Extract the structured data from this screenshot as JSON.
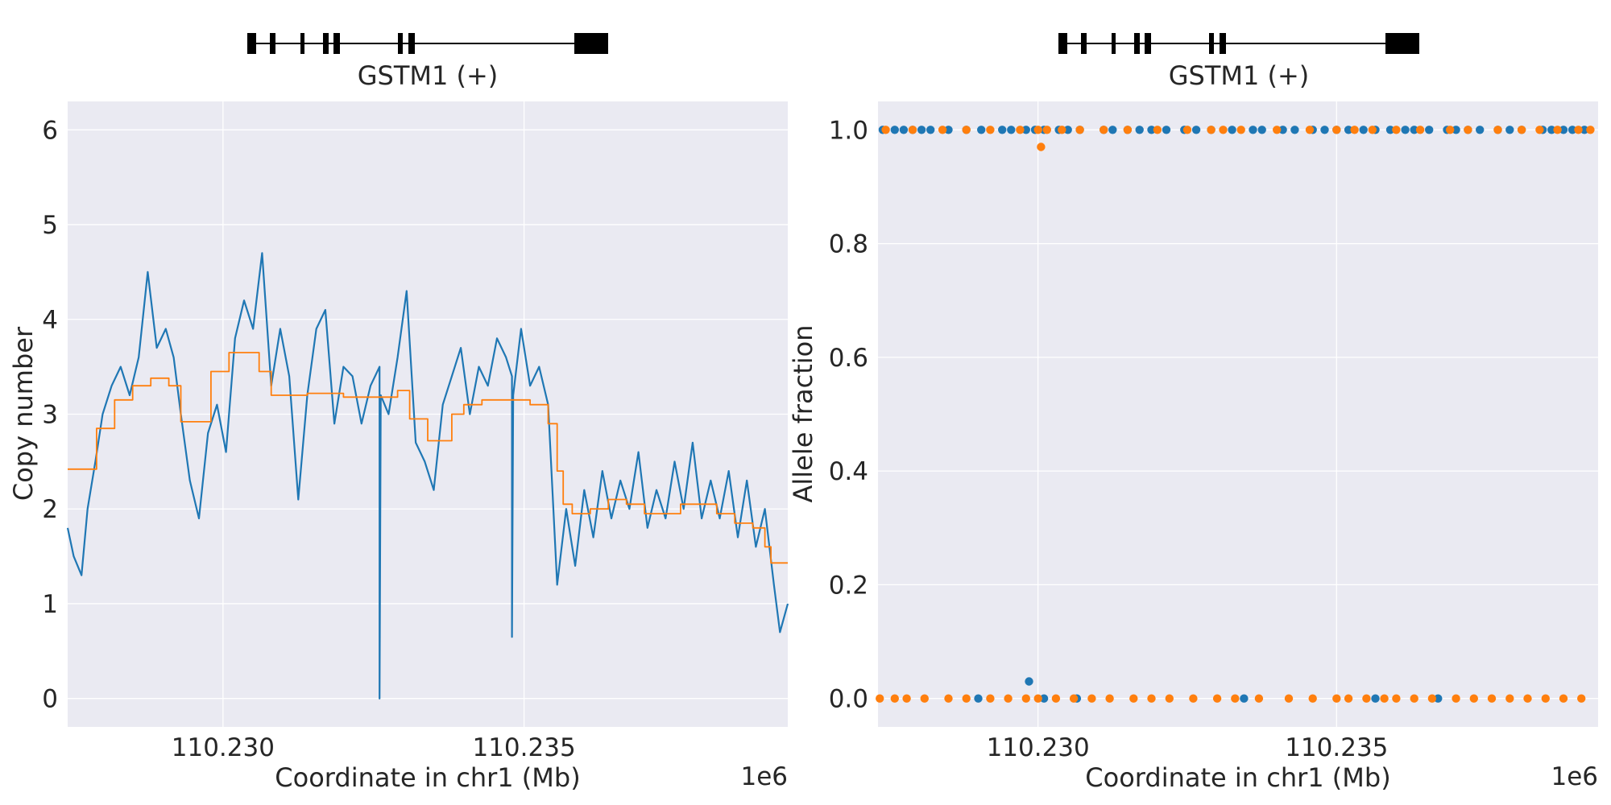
{
  "chart_data": [
    {
      "type": "line",
      "gene_track": {
        "label": "GSTM1 (+)"
      },
      "xlabel": "Coordinate in chr1 (Mb)",
      "ylabel": "Copy number",
      "x_offset_label": "1e6",
      "x_tick_labels": [
        "110.230",
        "110.235"
      ],
      "x_ticks": [
        110.23,
        110.235
      ],
      "y_tick_labels": [
        "0",
        "1",
        "2",
        "3",
        "4",
        "5",
        "6"
      ],
      "y_ticks": [
        0,
        1,
        2,
        3,
        4,
        5,
        6
      ],
      "xlim": [
        110.22742,
        110.23938
      ],
      "ylim": [
        -0.3,
        6.3
      ],
      "grid": true,
      "series": [
        {
          "color": "#1f77b4",
          "x": [
            110.22742,
            110.22752,
            110.22765,
            110.22775,
            110.22788,
            110.228,
            110.22815,
            110.2283,
            110.22845,
            110.2286,
            110.22875,
            110.2289,
            110.22905,
            110.22918,
            110.2293,
            110.22945,
            110.2296,
            110.22975,
            110.2299,
            110.23005,
            110.2302,
            110.23035,
            110.2305,
            110.23065,
            110.2308,
            110.23095,
            110.2311,
            110.23125,
            110.2314,
            110.23155,
            110.2317,
            110.23185,
            110.232,
            110.23215,
            110.2323,
            110.23245,
            110.2326,
            110.2326,
            110.23262,
            110.23275,
            110.2329,
            110.23305,
            110.2332,
            110.23335,
            110.2335,
            110.23365,
            110.2338,
            110.23395,
            110.2341,
            110.23425,
            110.2344,
            110.23455,
            110.2347,
            110.2348,
            110.2348,
            110.23482,
            110.23495,
            110.2351,
            110.23525,
            110.2354,
            110.23555,
            110.2357,
            110.23585,
            110.236,
            110.23615,
            110.2363,
            110.23645,
            110.2366,
            110.23675,
            110.2369,
            110.23705,
            110.2372,
            110.23735,
            110.2375,
            110.23765,
            110.2378,
            110.23795,
            110.2381,
            110.23825,
            110.2384,
            110.23855,
            110.2387,
            110.23885,
            110.239,
            110.23915,
            110.23925,
            110.23938
          ],
          "y": [
            1.8,
            1.5,
            1.3,
            2.0,
            2.5,
            3.0,
            3.3,
            3.5,
            3.2,
            3.6,
            4.5,
            3.7,
            3.9,
            3.6,
            3.0,
            2.3,
            1.9,
            2.8,
            3.1,
            2.6,
            3.8,
            4.2,
            3.9,
            4.7,
            3.3,
            3.9,
            3.4,
            2.1,
            3.2,
            3.9,
            4.1,
            2.9,
            3.5,
            3.4,
            2.9,
            3.3,
            3.5,
            0.0,
            3.2,
            3.0,
            3.6,
            4.3,
            2.7,
            2.5,
            2.2,
            3.1,
            3.4,
            3.7,
            3.0,
            3.5,
            3.3,
            3.8,
            3.6,
            3.4,
            0.65,
            3.2,
            3.9,
            3.3,
            3.5,
            3.1,
            1.2,
            2.0,
            1.4,
            2.2,
            1.7,
            2.4,
            1.9,
            2.3,
            2.0,
            2.6,
            1.8,
            2.2,
            1.9,
            2.5,
            2.0,
            2.7,
            1.9,
            2.3,
            1.9,
            2.4,
            1.7,
            2.3,
            1.6,
            2.0,
            1.2,
            0.7,
            1.0
          ]
        },
        {
          "color": "#ff7f0e",
          "x": [
            110.22742,
            110.2276,
            110.2279,
            110.2282,
            110.2285,
            110.2288,
            110.2291,
            110.2293,
            110.2296,
            110.2298,
            110.2301,
            110.2304,
            110.2306,
            110.2308,
            110.2311,
            110.2314,
            110.2317,
            110.232,
            110.2323,
            110.2326,
            110.2329,
            110.2331,
            110.2334,
            110.2336,
            110.2338,
            110.234,
            110.2343,
            110.2346,
            110.2349,
            110.2351,
            110.2354,
            110.23555,
            110.23565,
            110.2358,
            110.2361,
            110.2364,
            110.2367,
            110.237,
            110.2373,
            110.2376,
            110.2379,
            110.2382,
            110.2385,
            110.2388,
            110.239,
            110.2391,
            110.23938
          ],
          "y": [
            2.42,
            2.42,
            2.85,
            3.15,
            3.3,
            3.38,
            3.3,
            2.92,
            2.92,
            3.45,
            3.65,
            3.65,
            3.45,
            3.2,
            3.2,
            3.22,
            3.22,
            3.18,
            3.18,
            3.18,
            3.25,
            2.95,
            2.72,
            2.72,
            3.0,
            3.1,
            3.15,
            3.15,
            3.15,
            3.1,
            2.9,
            2.4,
            2.05,
            1.95,
            2.0,
            2.1,
            2.05,
            1.95,
            1.95,
            2.05,
            2.05,
            1.95,
            1.85,
            1.8,
            1.6,
            1.43,
            1.43
          ]
        }
      ]
    },
    {
      "type": "scatter",
      "gene_track": {
        "label": "GSTM1 (+)"
      },
      "xlabel": "Coordinate in chr1 (Mb)",
      "ylabel": "Allele fraction",
      "x_offset_label": "1e6",
      "x_tick_labels": [
        "110.230",
        "110.235"
      ],
      "x_ticks": [
        110.23,
        110.235
      ],
      "y_tick_labels": [
        "0.0",
        "0.2",
        "0.4",
        "0.6",
        "0.8",
        "1.0"
      ],
      "y_ticks": [
        0.0,
        0.2,
        0.4,
        0.6,
        0.8,
        1.0
      ],
      "xlim": [
        110.22732,
        110.23938
      ],
      "ylim": [
        -0.05,
        1.05
      ],
      "grid": true,
      "series": [
        {
          "color": "#1f77b4",
          "x": [
            110.2274,
            110.2276,
            110.22775,
            110.2279,
            110.22805,
            110.2282,
            110.2285,
            110.2288,
            110.22905,
            110.2294,
            110.22955,
            110.2298,
            110.22995,
            110.2301,
            110.23035,
            110.2305,
            110.2307,
            110.2311,
            110.23125,
            110.2315,
            110.2317,
            110.2319,
            110.23215,
            110.23245,
            110.23265,
            110.2329,
            110.23325,
            110.2336,
            110.23375,
            110.2341,
            110.2343,
            110.2346,
            110.2348,
            110.235,
            110.2352,
            110.23545,
            110.23565,
            110.2359,
            110.23615,
            110.2363,
            110.23655,
            110.23685,
            110.237,
            110.2372,
            110.2374,
            110.2377,
            110.2379,
            110.2381,
            110.23845,
            110.2386,
            110.2388,
            110.23895,
            110.23915,
            110.22985,
            110.229,
            110.2301,
            110.23065,
            110.23345,
            110.23565,
            110.2367
          ],
          "y": [
            1.0,
            1.0,
            1.0,
            1.0,
            1.0,
            1.0,
            1.0,
            1.0,
            1.0,
            1.0,
            1.0,
            1.0,
            1.0,
            1.0,
            1.0,
            1.0,
            1.0,
            1.0,
            1.0,
            1.0,
            1.0,
            1.0,
            1.0,
            1.0,
            1.0,
            1.0,
            1.0,
            1.0,
            1.0,
            1.0,
            1.0,
            1.0,
            1.0,
            1.0,
            1.0,
            1.0,
            1.0,
            1.0,
            1.0,
            1.0,
            1.0,
            1.0,
            1.0,
            1.0,
            1.0,
            1.0,
            1.0,
            1.0,
            1.0,
            1.0,
            1.0,
            1.0,
            1.0,
            0.03,
            0.0,
            0.0,
            0.0,
            0.0,
            0.0,
            0.0
          ]
        },
        {
          "color": "#ff7f0e",
          "x": [
            110.22745,
            110.2279,
            110.2284,
            110.2288,
            110.2292,
            110.2297,
            110.23,
            110.23015,
            110.2304,
            110.2307,
            110.2311,
            110.2315,
            110.232,
            110.2325,
            110.2329,
            110.2331,
            110.2334,
            110.234,
            110.23455,
            110.235,
            110.2353,
            110.2356,
            110.236,
            110.2364,
            110.2369,
            110.2372,
            110.2377,
            110.2381,
            110.2384,
            110.2387,
            110.23905,
            110.23925,
            110.23005,
            110.22735,
            110.2276,
            110.2278,
            110.2281,
            110.2285,
            110.2288,
            110.2292,
            110.2295,
            110.2298,
            110.23,
            110.2303,
            110.2306,
            110.2309,
            110.2312,
            110.2316,
            110.2319,
            110.2322,
            110.2326,
            110.233,
            110.2333,
            110.2337,
            110.2342,
            110.2346,
            110.235,
            110.2352,
            110.2355,
            110.2358,
            110.236,
            110.2363,
            110.2366,
            110.237,
            110.2373,
            110.2376,
            110.2379,
            110.2382,
            110.2385,
            110.2388,
            110.2391
          ],
          "y": [
            1.0,
            1.0,
            1.0,
            1.0,
            1.0,
            1.0,
            1.0,
            1.0,
            1.0,
            1.0,
            1.0,
            1.0,
            1.0,
            1.0,
            1.0,
            1.0,
            1.0,
            1.0,
            1.0,
            1.0,
            1.0,
            1.0,
            1.0,
            1.0,
            1.0,
            1.0,
            1.0,
            1.0,
            1.0,
            1.0,
            1.0,
            1.0,
            0.97,
            0.0,
            0.0,
            0.0,
            0.0,
            0.0,
            0.0,
            0.0,
            0.0,
            0.0,
            0.0,
            0.0,
            0.0,
            0.0,
            0.0,
            0.0,
            0.0,
            0.0,
            0.0,
            0.0,
            0.0,
            0.0,
            0.0,
            0.0,
            0.0,
            0.0,
            0.0,
            0.0,
            0.0,
            0.0,
            0.0,
            0.0,
            0.0,
            0.0,
            0.0,
            0.0,
            0.0,
            0.0,
            0.0
          ]
        }
      ]
    }
  ]
}
